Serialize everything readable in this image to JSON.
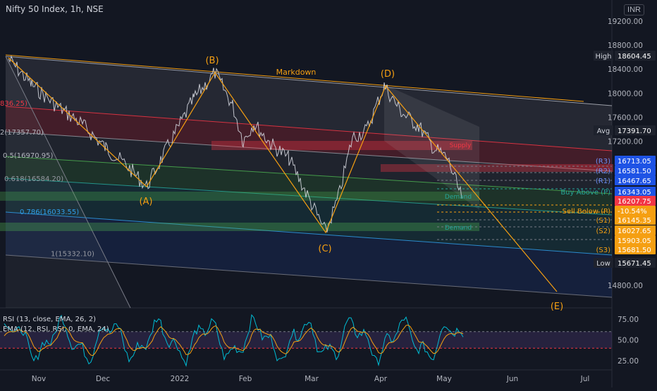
{
  "header": {
    "title": "Nifty 50 Index, 1h, NSE",
    "currency": "INR"
  },
  "colors": {
    "background": "#131722",
    "wave": "#f59f12",
    "price": "#d1d4dc",
    "supply": "#f23645",
    "demand": "#22ab94",
    "label_box": "#1e53e5",
    "fib_blue": "#2f9de8"
  },
  "chart_data": {
    "type": "line",
    "price_axis": {
      "ticks": [
        "19200.00",
        "18800.00",
        "18400.00",
        "18000.00",
        "17600.00",
        "17200.00",
        "14800.00"
      ],
      "ylim": [
        14600,
        19450
      ]
    },
    "time_axis": {
      "ticks": [
        "Nov",
        "Dec",
        "2022",
        "Feb",
        "Mar",
        "Apr",
        "May",
        "Jun",
        "Jul"
      ]
    },
    "waves": [
      {
        "label": "(A)",
        "price": 16410
      },
      {
        "label": "(B)",
        "price": 18350
      },
      {
        "label": "(C)",
        "price": 16000
      },
      {
        "label": "(D)",
        "price": 18110
      },
      {
        "label": "(E)",
        "price": 14650
      }
    ],
    "annotations": {
      "markdown": "Markdown",
      "supply": "Supply",
      "demand": "Demand"
    },
    "fib_levels": [
      {
        "label": "836.25)",
        "price": 17836.25
      },
      {
        "label": "2(17357.70)",
        "price": 17357.7
      },
      {
        "label": "0.5(16970.95)",
        "price": 16970.95
      },
      {
        "label": "0.618(16584.20)",
        "price": 16584.2
      },
      {
        "label": "0.786(16033.55)",
        "price": 16033.55
      },
      {
        "label": "1(15332.10)",
        "price": 15332.1
      }
    ],
    "price_labels": [
      {
        "tag": "High",
        "value": "18604.45"
      },
      {
        "tag": "Avg",
        "value": "17391.70"
      },
      {
        "tag": "(R3)",
        "value": "16713.05"
      },
      {
        "tag": "(R2)",
        "value": "16581.50"
      },
      {
        "tag": "(R1)",
        "value": "16467.65"
      },
      {
        "tag": "Buy Above (P)",
        "value": "16343.05"
      },
      {
        "tag": "",
        "value": "16207.75"
      },
      {
        "tag": "Sell Below (P)",
        "value": "-10.54%"
      },
      {
        "tag": "(S1)",
        "value": "16145.35"
      },
      {
        "tag": "(S2)",
        "value": "16027.65"
      },
      {
        "tag": "",
        "value": "15903.05"
      },
      {
        "tag": "(S3)",
        "value": "15681.50"
      },
      {
        "tag": "Low",
        "value": "15671.45"
      }
    ],
    "rsi": {
      "legend1": "RSI (13, close, EMA, 26, 2)",
      "legend2": "EMA (12, RSI, RSI, 0, EMA, 24)",
      "ticks": [
        "75.00",
        "50.00",
        "25.00"
      ],
      "ylim": [
        14,
        86
      ]
    }
  }
}
